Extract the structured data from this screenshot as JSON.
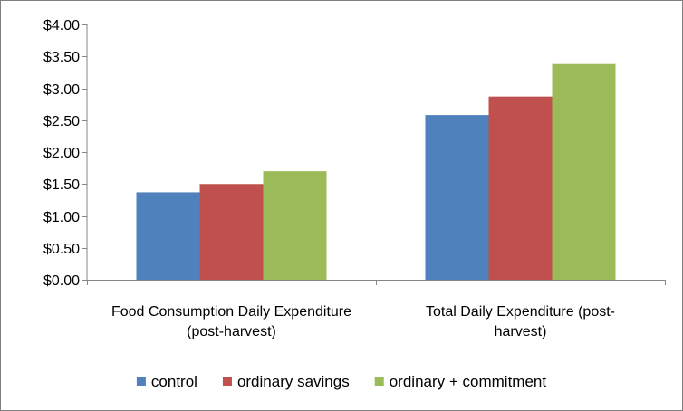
{
  "chart_data": {
    "type": "bar",
    "title": "",
    "xlabel": "",
    "ylabel": "",
    "categories": [
      [
        "Food Consumption Daily Expenditure",
        "(post-harvest)"
      ],
      [
        "Total Daily Expenditure (post-",
        "harvest)"
      ]
    ],
    "series": [
      {
        "name": "control",
        "color": "#4f81bd",
        "values": [
          1.37,
          2.58
        ]
      },
      {
        "name": "ordinary savings",
        "color": "#c0504d",
        "values": [
          1.5,
          2.87
        ]
      },
      {
        "name": "ordinary + commitment",
        "color": "#9bbb59",
        "values": [
          1.7,
          3.38
        ]
      }
    ],
    "ylim": [
      0,
      4
    ],
    "yticks": [
      0,
      0.5,
      1,
      1.5,
      2,
      2.5,
      3,
      3.5,
      4
    ],
    "ytick_labels": [
      "$0.00",
      "$0.50",
      "$1.00",
      "$1.50",
      "$2.00",
      "$2.50",
      "$3.00",
      "$3.50",
      "$4.00"
    ],
    "grid": false,
    "legend_position": "bottom"
  }
}
